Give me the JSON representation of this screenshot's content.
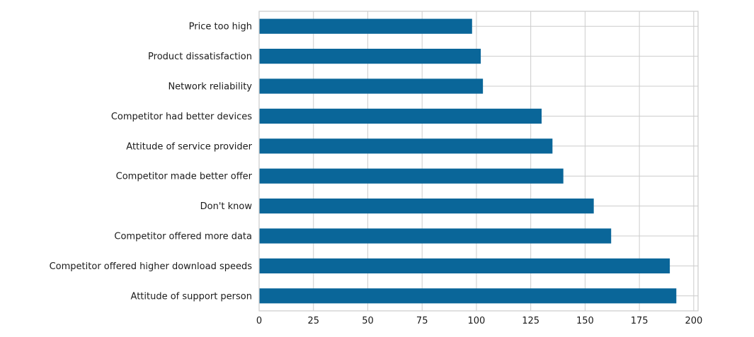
{
  "chart_data": {
    "type": "bar",
    "orientation": "horizontal",
    "title": "",
    "xlabel": "",
    "ylabel": "",
    "categories": [
      "Price too high",
      "Product dissatisfaction",
      "Network reliability",
      "Competitor had better devices",
      "Attitude of service provider",
      "Competitor made better offer",
      "Don't know",
      "Competitor offered more data",
      "Competitor offered higher download speeds",
      "Attitude of support person"
    ],
    "values": [
      98,
      102,
      103,
      130,
      135,
      140,
      154,
      162,
      189,
      192
    ],
    "xlim": [
      0,
      202
    ],
    "xticks": [
      0,
      25,
      50,
      75,
      100,
      125,
      150,
      175,
      200
    ],
    "xtick_labels": [
      "0",
      "25",
      "50",
      "75",
      "100",
      "125",
      "150",
      "175",
      "200"
    ],
    "grid": true,
    "bar_color": "#0a6699",
    "grid_color": "#cccccc"
  }
}
